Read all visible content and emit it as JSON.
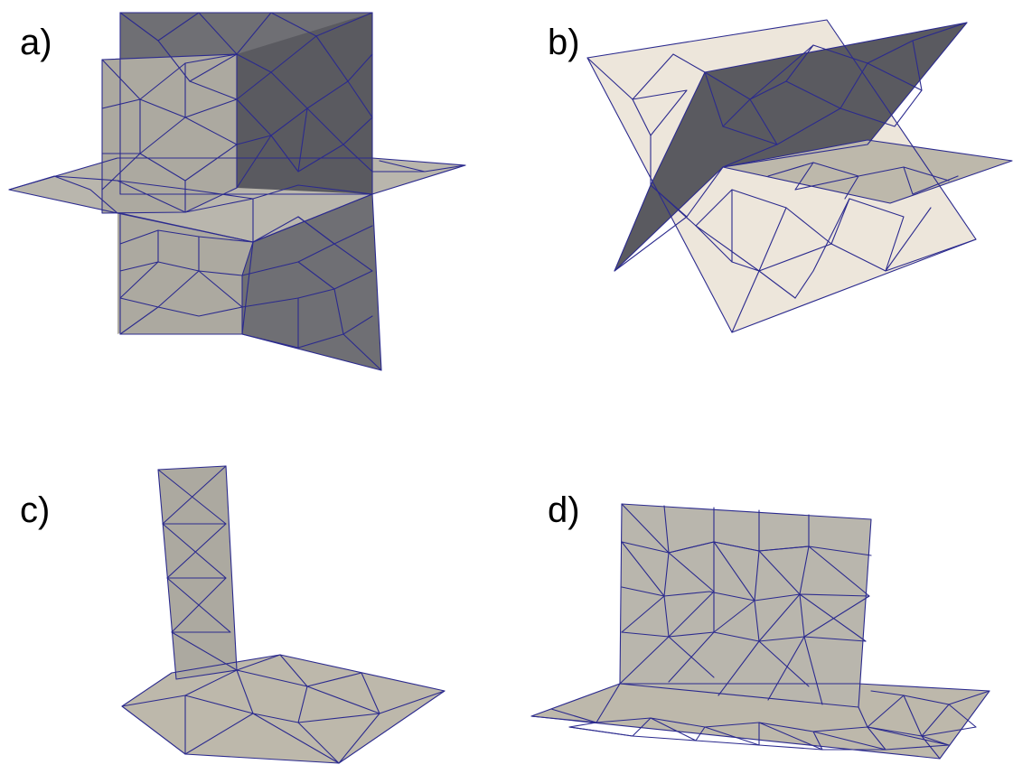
{
  "panels": [
    {
      "label": "a)",
      "subject": "three-orthogonal-plane-mesh"
    },
    {
      "label": "b)",
      "subject": "two-crossing-inclined-plane-mesh"
    },
    {
      "label": "c)",
      "subject": "column-on-floor-mesh"
    },
    {
      "label": "d)",
      "subject": "wall-on-floor-mesh"
    }
  ],
  "colors": {
    "edge": "#2b2a8e",
    "face_light": "#aca9a0",
    "face_dark": "#6f6f74",
    "face_cream": "#ede6db",
    "background": "#ffffff"
  }
}
